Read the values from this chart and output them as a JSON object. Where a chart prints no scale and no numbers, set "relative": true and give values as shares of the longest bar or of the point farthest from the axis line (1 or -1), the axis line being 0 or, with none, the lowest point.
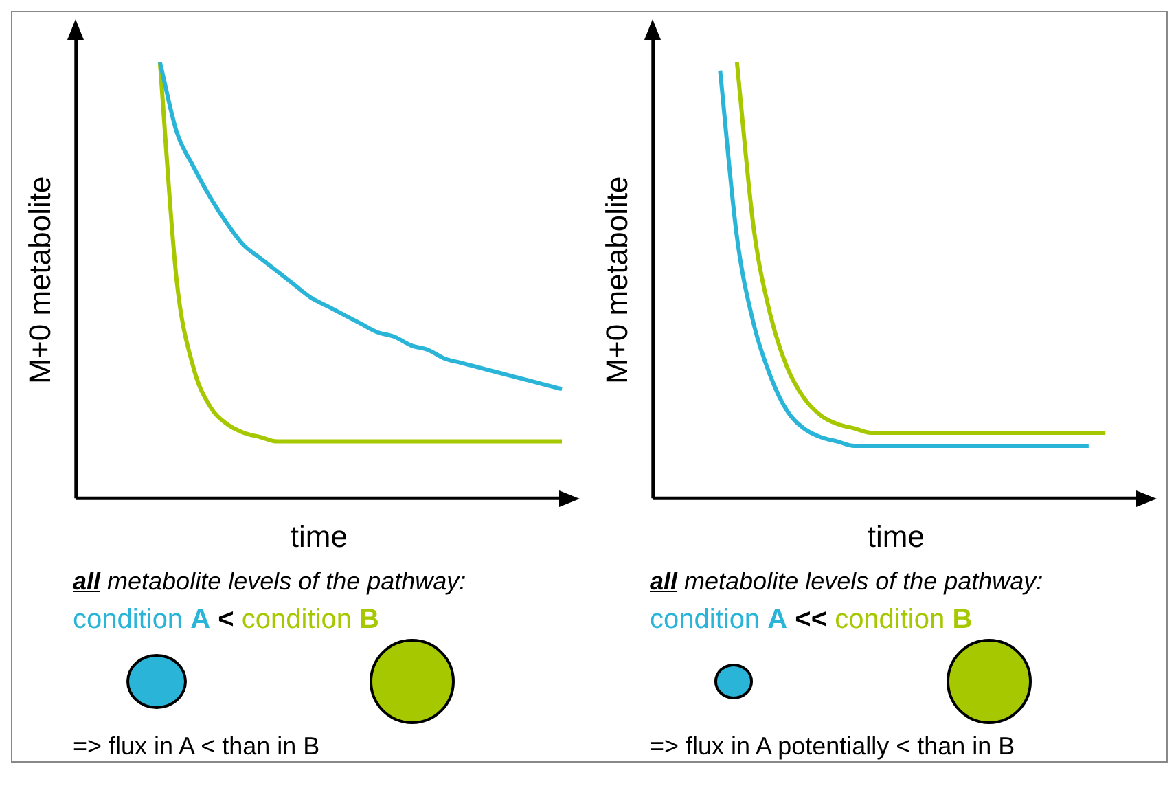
{
  "chart_data": [
    {
      "type": "line",
      "relative": true,
      "xlabel": "time",
      "ylabel": "M+0 metabolite",
      "categories": [
        null,
        null,
        null,
        null,
        null,
        null,
        null,
        null,
        null,
        null,
        null,
        null,
        null,
        null,
        null,
        null,
        null,
        null,
        null,
        null,
        null,
        null,
        null,
        null,
        null,
        null,
        null,
        null,
        null,
        null
      ],
      "series": [
        {
          "color": "#2ab5d8",
          "values": [
            null,
            null,
            null,
            null,
            null,
            1.0,
            0.84,
            0.76,
            0.69,
            0.63,
            0.58,
            0.55,
            0.52,
            0.49,
            0.46,
            0.44,
            0.42,
            0.4,
            0.38,
            0.37,
            0.35,
            0.34,
            0.32,
            0.31,
            0.3,
            0.29,
            0.28,
            0.27,
            0.26,
            0.25
          ]
        },
        {
          "color": "#a6c800",
          "values": [
            null,
            null,
            null,
            null,
            null,
            1.0,
            0.5,
            0.3,
            0.21,
            0.17,
            0.15,
            0.14,
            0.13,
            0.13,
            0.13,
            0.13,
            0.13,
            0.13,
            0.13,
            0.13,
            0.13,
            0.13,
            0.13,
            0.13,
            0.13,
            0.13,
            0.13,
            0.13,
            0.13,
            0.13
          ]
        }
      ],
      "annotations": [
        "all metabolite levels of the pathway:",
        "condition A",
        "<",
        "condition B",
        "=> flux in A < than in B"
      ]
    },
    {
      "type": "line",
      "relative": true,
      "xlabel": "time",
      "ylabel": "M+0 metabolite",
      "categories": [
        null,
        null,
        null,
        null,
        null,
        null,
        null,
        null,
        null,
        null,
        null,
        null,
        null,
        null,
        null,
        null,
        null,
        null,
        null,
        null,
        null,
        null,
        null,
        null,
        null,
        null,
        null,
        null,
        null,
        null
      ],
      "series": [
        {
          "color": "#2ab5d8",
          "values": [
            null,
            null,
            null,
            null,
            0.98,
            0.6,
            0.4,
            0.28,
            0.2,
            0.16,
            0.14,
            0.13,
            0.12,
            0.12,
            0.12,
            0.12,
            0.12,
            0.12,
            0.12,
            0.12,
            0.12,
            0.12,
            0.12,
            0.12,
            0.12,
            0.12,
            0.12,
            null,
            null,
            null
          ]
        },
        {
          "color": "#a6c800",
          "values": [
            null,
            null,
            null,
            null,
            null,
            1.0,
            0.62,
            0.42,
            0.3,
            0.23,
            0.19,
            0.17,
            0.16,
            0.15,
            0.15,
            0.15,
            0.15,
            0.15,
            0.15,
            0.15,
            0.15,
            0.15,
            0.15,
            0.15,
            0.15,
            0.15,
            0.15,
            0.15,
            null,
            null
          ]
        }
      ],
      "annotations": [
        "all metabolite levels of the pathway:",
        "condition A",
        "<<",
        "condition B",
        "=> flux in A potentially < than in B"
      ]
    }
  ]
}
